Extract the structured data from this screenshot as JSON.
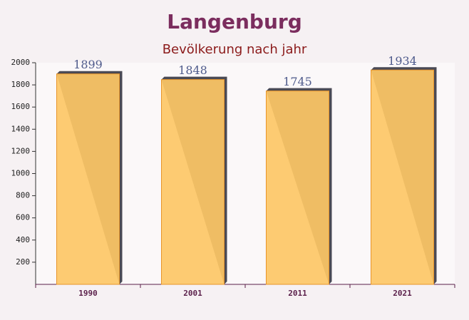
{
  "chart_data": {
    "type": "bar",
    "title": "Langenburg",
    "subtitle": "Bevölkerung nach jahr",
    "categories": [
      "1990",
      "2001",
      "2011",
      "2021"
    ],
    "values": [
      1899,
      1848,
      1745,
      1934
    ],
    "color": "#fdc766",
    "ylim": [
      0,
      2000
    ],
    "yticks": [
      200,
      400,
      600,
      800,
      1000,
      1200,
      1400,
      1600,
      1800,
      2000
    ]
  }
}
